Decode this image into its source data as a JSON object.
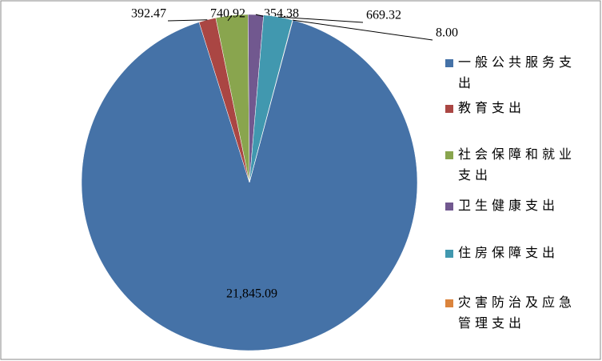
{
  "chart_data": {
    "type": "pie",
    "categories": [
      "一般公共服务支出",
      "教育支出",
      "社会保障和就业支出",
      "卫生健康支出",
      "住房保障支出",
      "灾害防治及应急管理支出"
    ],
    "values": [
      21845.09,
      392.47,
      740.92,
      354.38,
      669.32,
      8.0
    ],
    "value_labels": [
      "21,845.09",
      "392.47",
      "740.92",
      "354.38",
      "669.32",
      "8.00"
    ],
    "colors": [
      "#4572a7",
      "#aa4643",
      "#89a54e",
      "#71588f",
      "#4198af",
      "#db843d"
    ],
    "legend": "right"
  }
}
